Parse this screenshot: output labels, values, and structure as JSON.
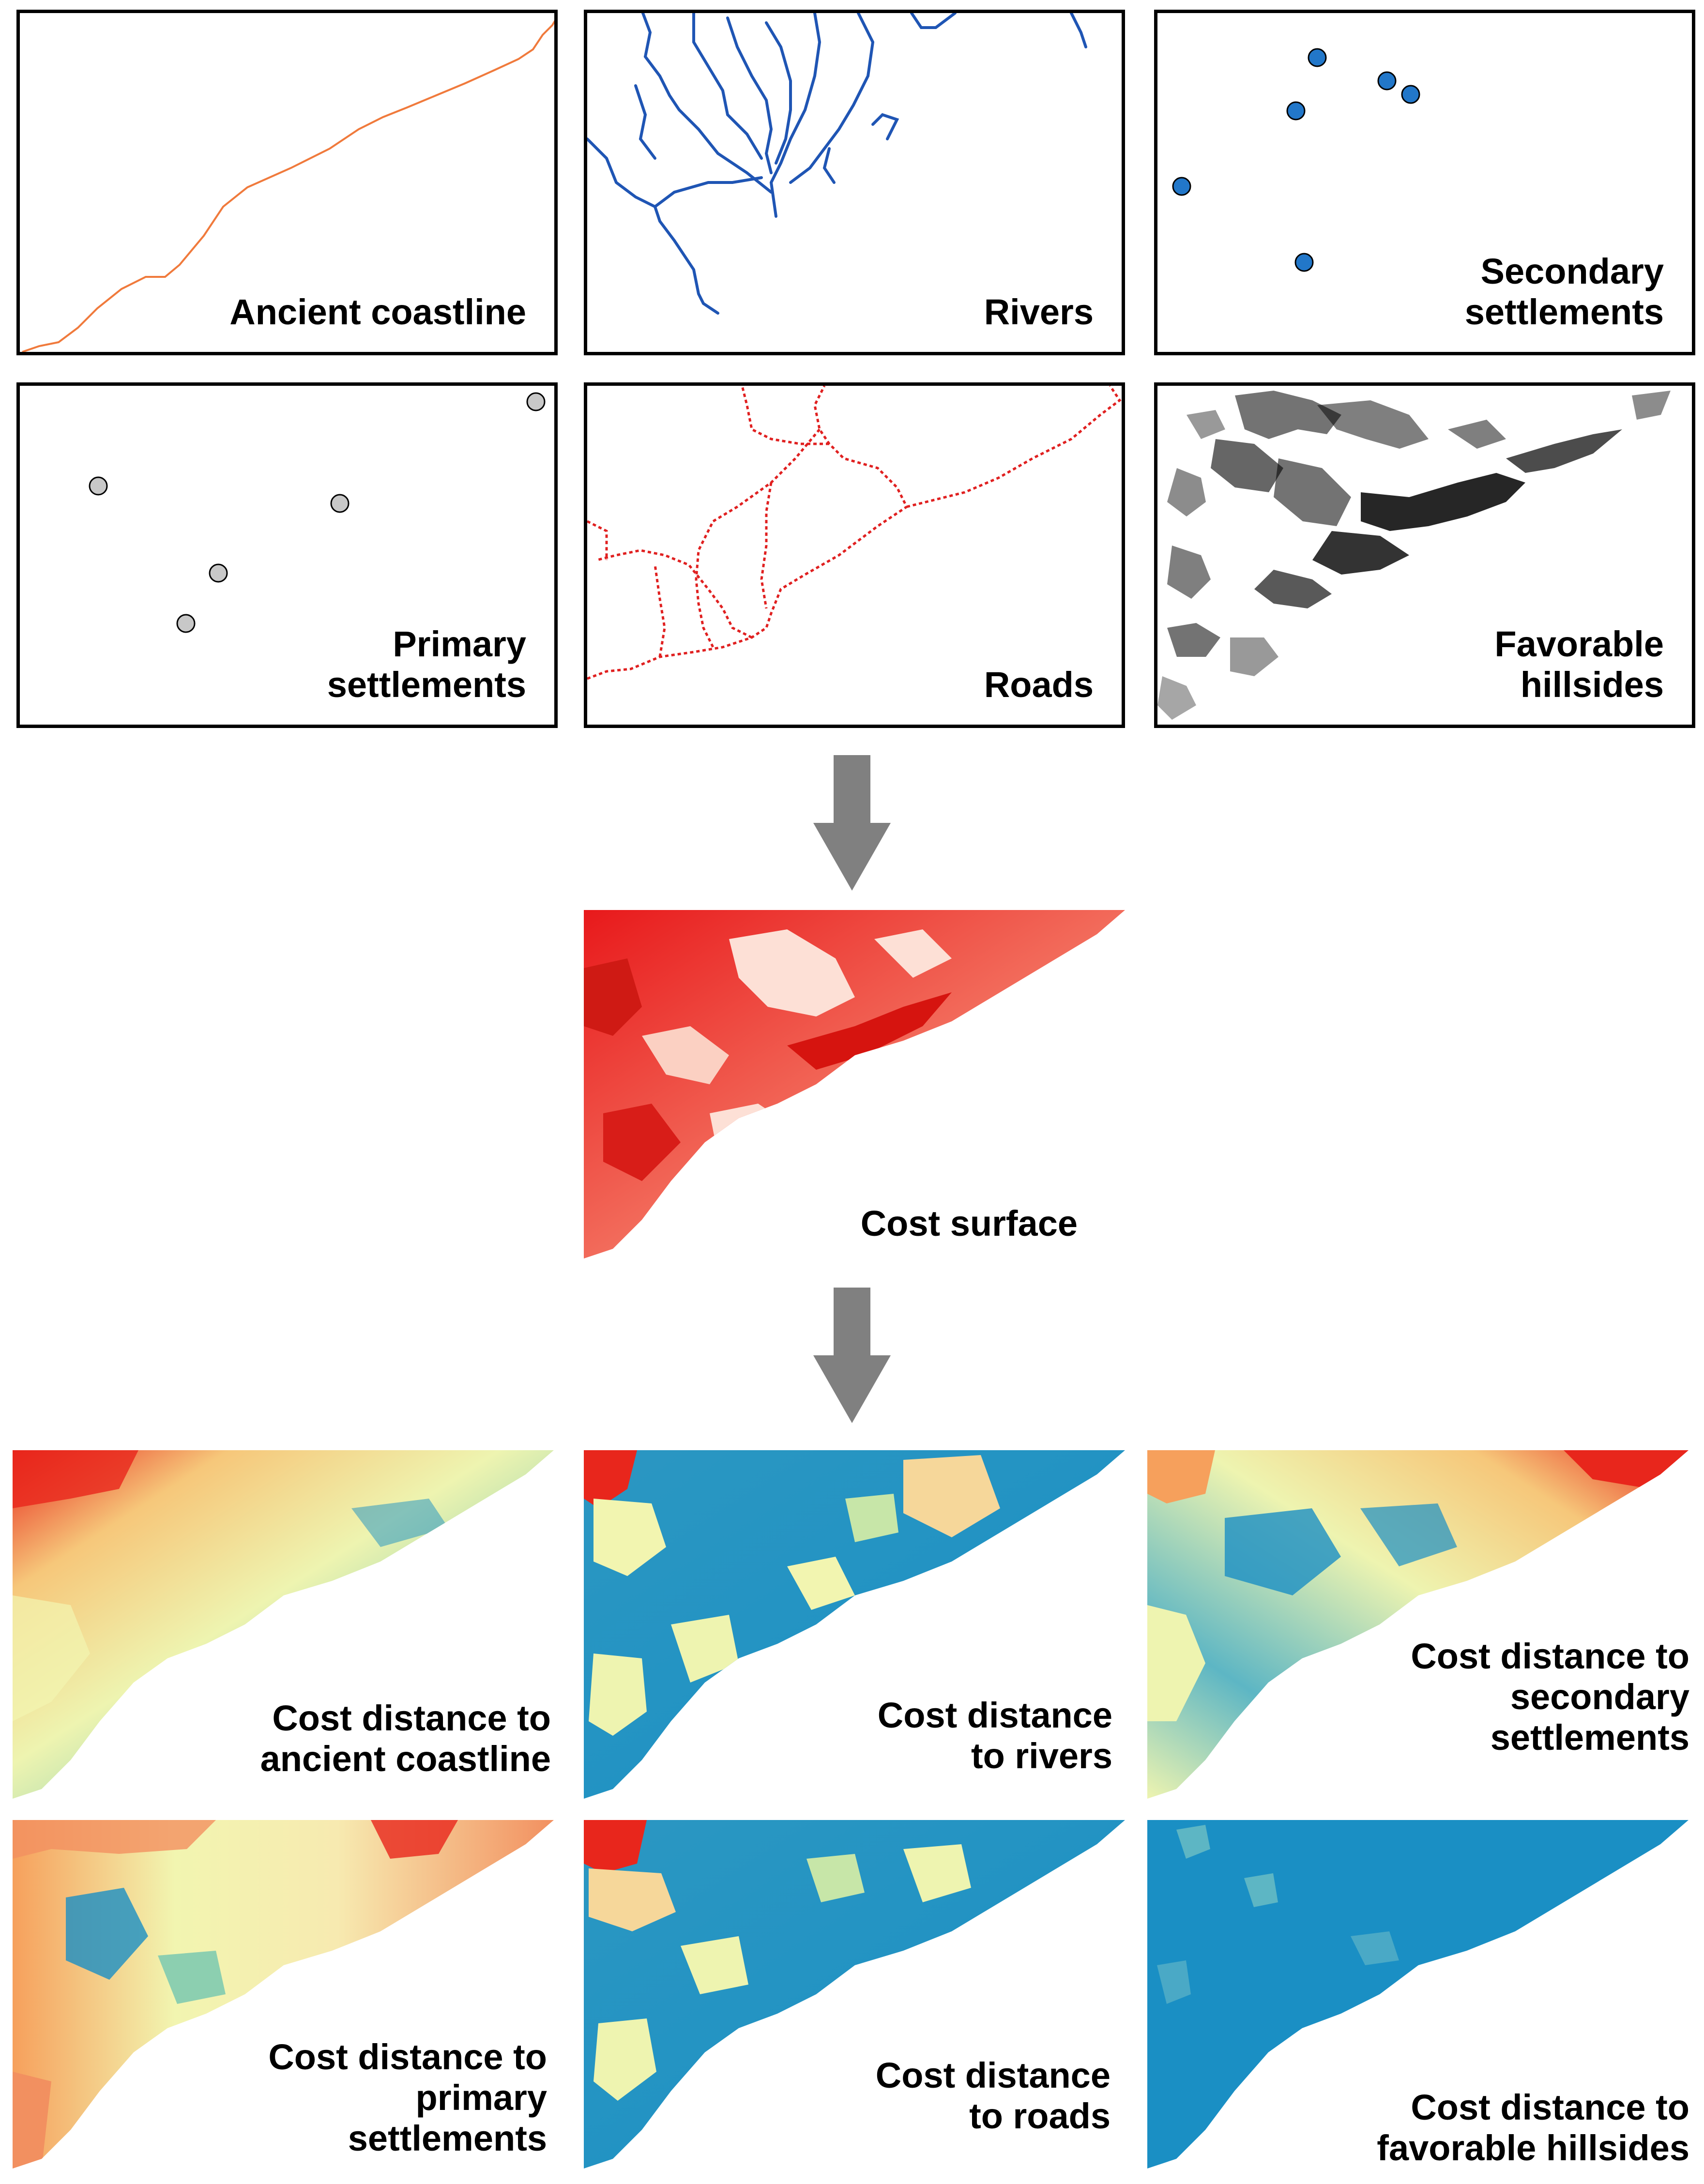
{
  "input_layers": [
    {
      "label": "Ancient coastline",
      "icon": "coastline-line",
      "color": "#f07a3c"
    },
    {
      "label": "Rivers",
      "icon": "river-network",
      "color": "#1f55b4"
    },
    {
      "label": "Secondary\nsettlements",
      "icon": "blue-points",
      "color": "#2277c9"
    },
    {
      "label": "Primary\nsettlements",
      "icon": "grey-points",
      "color": "#c8c8c8"
    },
    {
      "label": "Roads",
      "icon": "dotted-road-network",
      "color": "#e02020"
    },
    {
      "label": "Favorable\nhillsides",
      "icon": "black-hillside-patches",
      "color": "#000000"
    }
  ],
  "cost_surface": {
    "label": "Cost surface",
    "color_low": "#fde0d6",
    "color_high": "#e8191b"
  },
  "cost_distance_maps": [
    {
      "label": "Cost distance to\nancient coastline"
    },
    {
      "label": "Cost distance\nto rivers"
    },
    {
      "label": "Cost distance to\nsecondary\nsettlements"
    },
    {
      "label": "Cost distance to\nprimary\nsettlements"
    },
    {
      "label": "Cost distance\nto roads"
    },
    {
      "label": "Cost distance to\nfavorable hillsides"
    }
  ],
  "colors": {
    "arrow": "#808080",
    "ramp_low": "#1a8fc4",
    "ramp_mid": "#f2f5b0",
    "ramp_high": "#e8261c"
  }
}
